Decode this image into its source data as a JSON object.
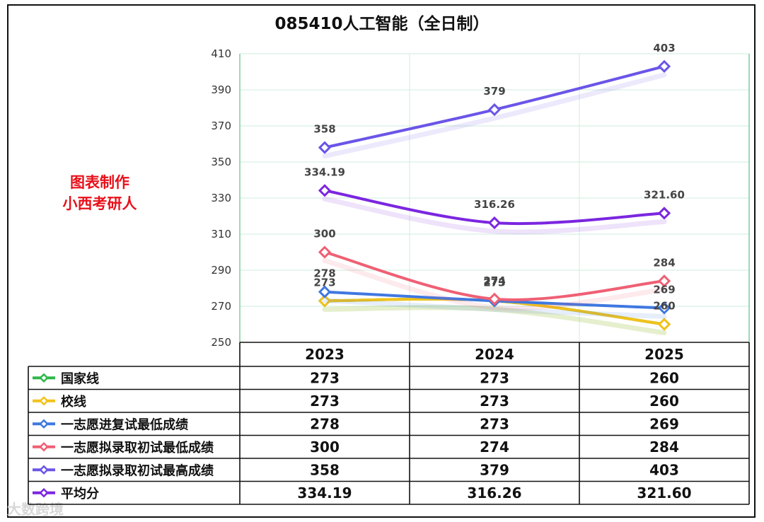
{
  "chart_data": {
    "type": "line",
    "title": "085410人工智能（全日制）",
    "categories": [
      "2023",
      "2024",
      "2025"
    ],
    "ylim": [
      250,
      410
    ],
    "yticks": [
      250,
      270,
      290,
      310,
      330,
      350,
      370,
      390,
      410
    ],
    "grid": true,
    "series": [
      {
        "name": "国家线",
        "color": "#2fb84a",
        "values": [
          273,
          273,
          260
        ],
        "value_labels": [
          "273",
          "273",
          "260"
        ],
        "show_labels": false
      },
      {
        "name": "校线",
        "color": "#f2c21b",
        "values": [
          273,
          273,
          260
        ],
        "value_labels": [
          "273",
          "273",
          "260"
        ],
        "show_labels": true
      },
      {
        "name": "一志愿进复试最低成绩",
        "color": "#3f78e0",
        "values": [
          278,
          273,
          269
        ],
        "value_labels": [
          "278",
          "273",
          "269"
        ],
        "show_labels": true
      },
      {
        "name": "一志愿拟录取初试最低成绩",
        "color": "#ef6074",
        "values": [
          300,
          274,
          284
        ],
        "value_labels": [
          "300",
          "274",
          "284"
        ],
        "show_labels": true
      },
      {
        "name": "一志愿拟录取初试最高成绩",
        "color": "#6a55e8",
        "values": [
          358,
          379,
          403
        ],
        "value_labels": [
          "358",
          "379",
          "403"
        ],
        "show_labels": true
      },
      {
        "name": "平均分",
        "color": "#7b26e0",
        "values": [
          334.19,
          316.26,
          321.6
        ],
        "value_labels": [
          "334.19",
          "316.26",
          "321.60"
        ],
        "show_labels": true
      }
    ]
  },
  "watermark": {
    "line1": "图表制作",
    "line2": "小西考研人"
  },
  "credit": "大数跨境"
}
